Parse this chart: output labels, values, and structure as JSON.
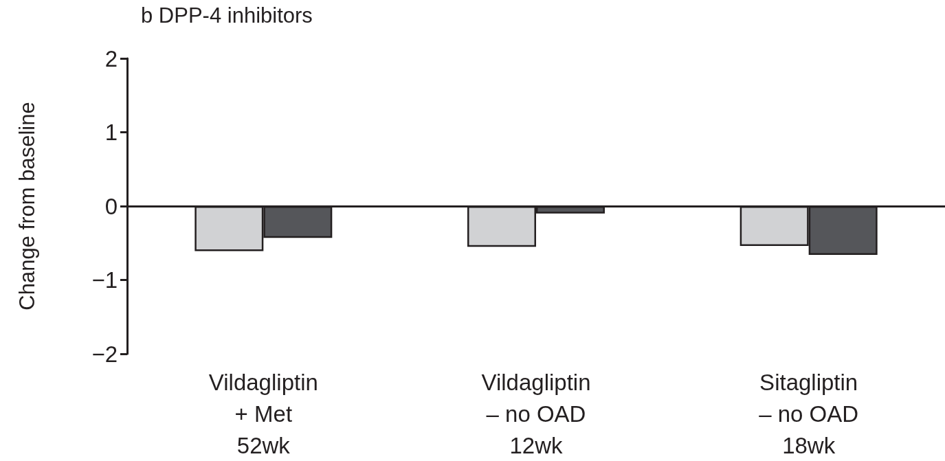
{
  "chart_data": {
    "type": "bar",
    "title": "b DPP-4 inhibitors",
    "ylabel": "Change from baseline",
    "categories": [
      "Vildagliptin\n+ Met\n52wk",
      "Vildagliptin\n– no OAD\n12wk",
      "Sitagliptin\n– no OAD\n18wk"
    ],
    "series": [
      {
        "color": "#d1d2d4",
        "values": [
          -0.61,
          -0.55,
          -0.54
        ]
      },
      {
        "color": "#55565a",
        "values": [
          -0.43,
          -0.1,
          -0.66
        ]
      }
    ],
    "ylim": [
      -2,
      2
    ],
    "yticks": [
      {
        "value": -2,
        "label": "−2"
      },
      {
        "value": -1,
        "label": "−1"
      },
      0,
      1,
      2
    ],
    "tick_labels": "xy"
  }
}
